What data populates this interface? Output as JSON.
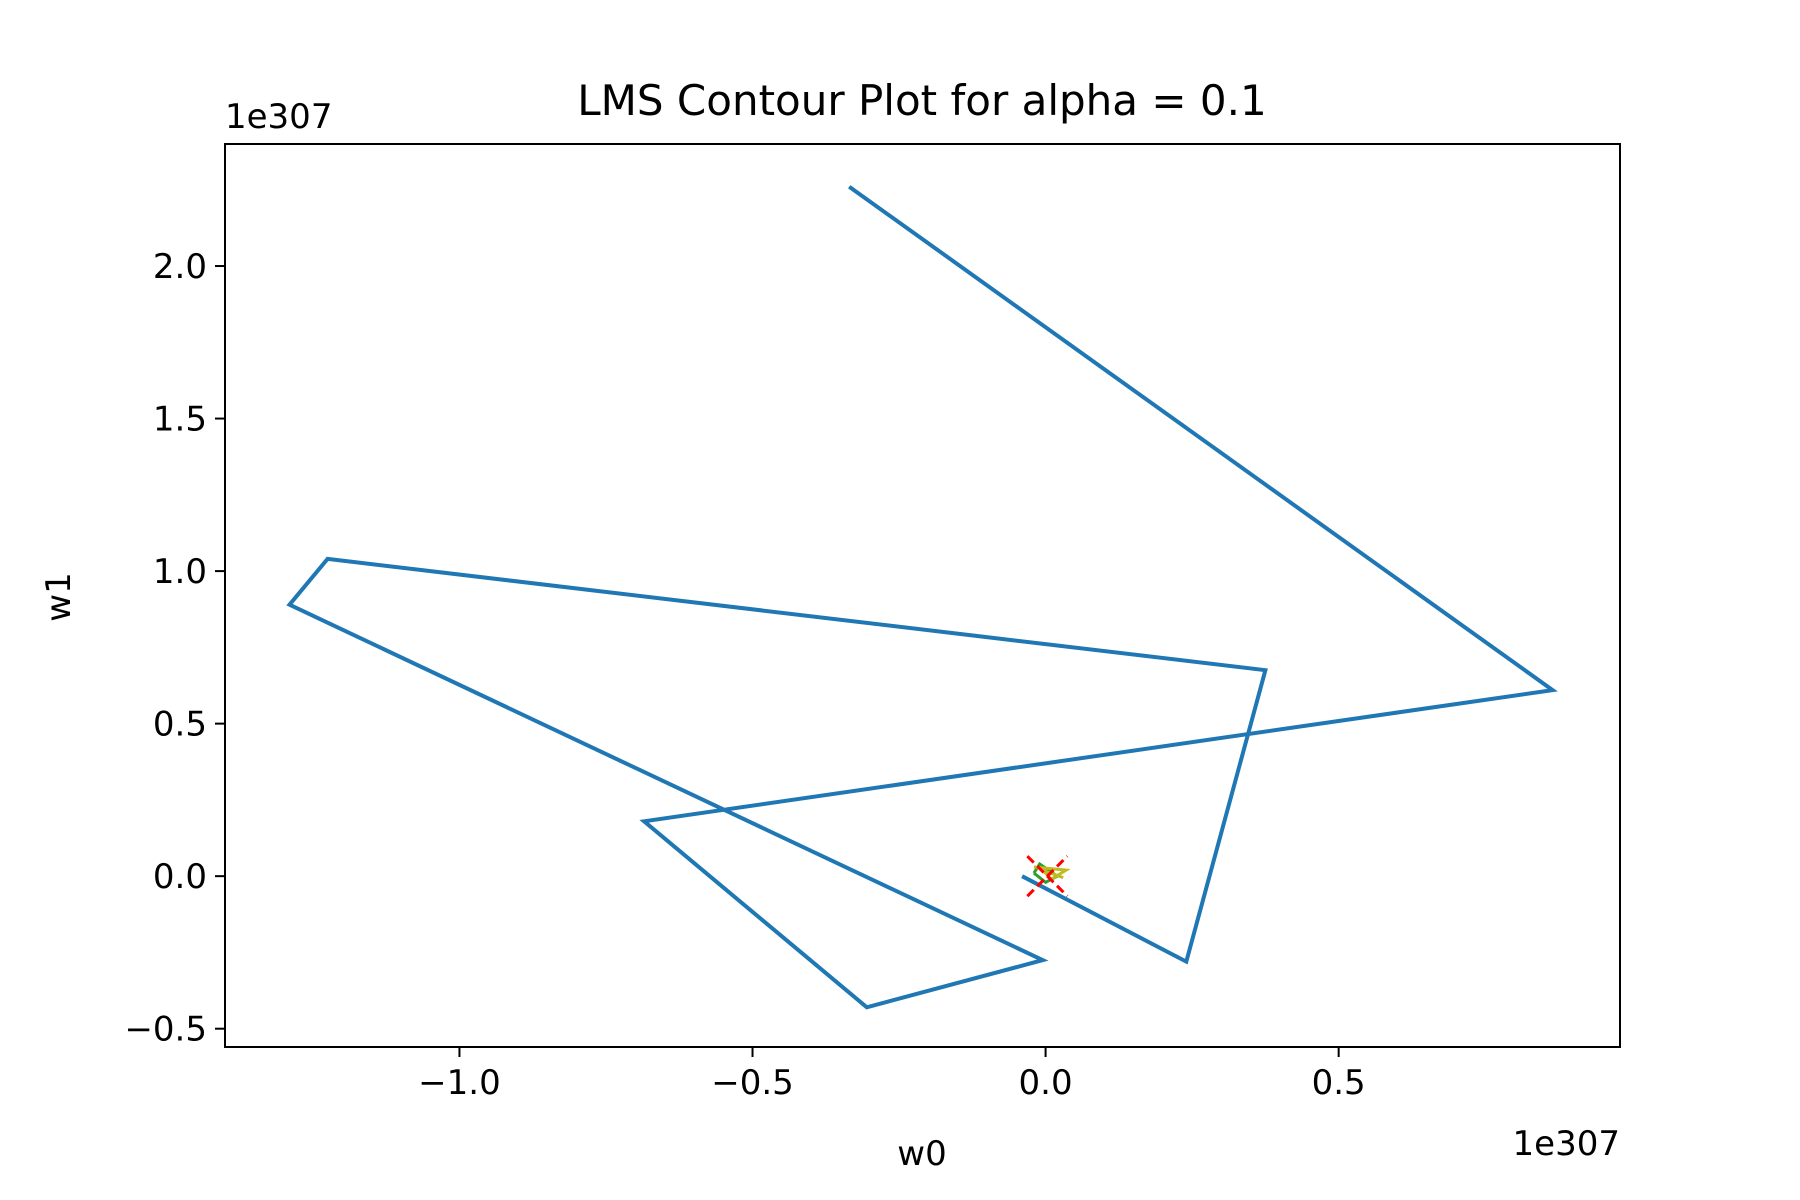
{
  "chart_data": {
    "type": "line",
    "title": "LMS Contour Plot for alpha = 0.1",
    "xlabel": "w0",
    "ylabel": "w1",
    "x_offset_label": "1e307",
    "y_offset_label": "1e307",
    "xlim": [
      -1.4,
      0.98
    ],
    "ylim": [
      -0.56,
      2.4
    ],
    "xticks": [
      -1.0,
      -0.5,
      0.0,
      0.5
    ],
    "xtick_labels": [
      "−1.0",
      "−0.5",
      "0.0",
      "0.5"
    ],
    "yticks": [
      -0.5,
      0.0,
      0.5,
      1.0,
      1.5,
      2.0
    ],
    "ytick_labels": [
      "−0.5",
      "0.0",
      "0.5",
      "1.0",
      "1.5",
      "2.0"
    ],
    "grid": false,
    "series": [
      {
        "color": "#1f77b4",
        "x": [
          -0.335,
          0.865,
          -0.685,
          -0.305,
          -0.005,
          -1.29,
          -1.225,
          0.375,
          0.24,
          -0.04
        ],
        "y": [
          2.26,
          0.61,
          0.18,
          -0.43,
          -0.275,
          0.89,
          1.04,
          0.675,
          -0.28,
          0.0
        ]
      },
      {
        "color": "#2ca02c",
        "x": [
          -0.02,
          -0.01,
          0.02,
          0.0,
          -0.02
        ],
        "y": [
          0.01,
          0.04,
          0.0,
          -0.02,
          0.01
        ]
      },
      {
        "color": "#bcbd22",
        "x": [
          -0.02,
          0.035,
          0.01,
          -0.005,
          0.03
        ],
        "y": [
          0.03,
          0.02,
          -0.01,
          0.02,
          -0.005
        ]
      }
    ],
    "markers": [
      {
        "marker": "x",
        "color": "#ff0000",
        "x": 0.003,
        "y": 0.0
      }
    ]
  }
}
